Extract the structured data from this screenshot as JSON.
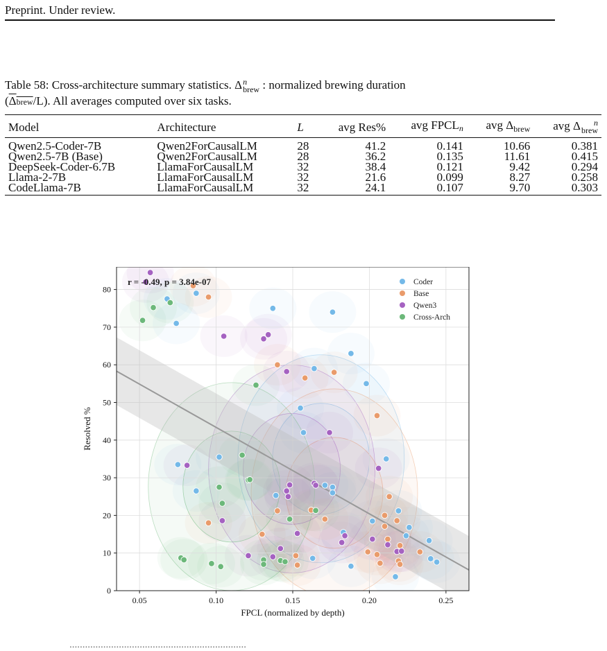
{
  "header": {
    "text": "Preprint. Under review."
  },
  "caption": {
    "lead": "Table 58: Cross-architecture summary statistics.",
    "delta": "Δ",
    "delta_sup": "n",
    "delta_sub": "brew",
    "colon_text": ": normalized brewing duration",
    "ratio_open": "(",
    "ratio_over": "Δ",
    "ratio_sub": "brew",
    "ratio_tail": "/L). All averages computed over six tasks."
  },
  "table": {
    "headers": {
      "model": "Model",
      "arch": "Architecture",
      "L": "L",
      "res": "avg Res%",
      "fpcl": "avg FPCL",
      "fpcl_sub": "n",
      "brew": "avg Δ",
      "brew_sub": "brew",
      "brewn": "avg Δ",
      "brewn_sup": "n",
      "brewn_sub": "brew"
    },
    "rows": [
      {
        "model": "Qwen2.5-Coder-7B",
        "arch": "Qwen2ForCausalLM",
        "L": "28",
        "res": "41.2",
        "fpcl": "0.141",
        "brew": "10.66",
        "brewn": "0.381"
      },
      {
        "model": "Qwen2.5-7B (Base)",
        "arch": "Qwen2ForCausalLM",
        "L": "28",
        "res": "36.2",
        "fpcl": "0.135",
        "brew": "11.61",
        "brewn": "0.415"
      },
      {
        "model": "DeepSeek-Coder-6.7B",
        "arch": "LlamaForCausalLM",
        "L": "32",
        "res": "38.4",
        "fpcl": "0.121",
        "brew": "9.42",
        "brewn": "0.294"
      },
      {
        "model": "Llama-2-7B",
        "arch": "LlamaForCausalLM",
        "L": "32",
        "res": "21.6",
        "fpcl": "0.099",
        "brew": "8.27",
        "brewn": "0.258"
      },
      {
        "model": "CodeLlama-7B",
        "arch": "LlamaForCausalLM",
        "L": "32",
        "res": "24.1",
        "fpcl": "0.107",
        "brew": "9.70",
        "brewn": "0.303"
      }
    ]
  },
  "chart_data": {
    "type": "scatter",
    "xlabel": "FPCL (normalized by depth)",
    "ylabel": "Resolved %",
    "xlim": [
      0.035,
      0.265
    ],
    "ylim": [
      0,
      86
    ],
    "xticks": [
      "0.05",
      "0.10",
      "0.15",
      "0.20",
      "0.25"
    ],
    "yticks": [
      "0",
      "10",
      "20",
      "30",
      "40",
      "50",
      "60",
      "70",
      "80"
    ],
    "grid": true,
    "legend_position": "top-right",
    "annotation": "r = -0.49,  p = 3.84e-07",
    "trend": {
      "x": [
        0.035,
        0.265
      ],
      "y": [
        58.3,
        5.5
      ]
    },
    "series": [
      {
        "name": "Coder",
        "color": "#74b9e8",
        "points": [
          [
            0.068,
            77.5
          ],
          [
            0.074,
            71
          ],
          [
            0.087,
            79
          ],
          [
            0.075,
            33.5
          ],
          [
            0.087,
            26.5
          ],
          [
            0.102,
            35.5
          ],
          [
            0.137,
            75
          ],
          [
            0.176,
            74
          ],
          [
            0.188,
            63
          ],
          [
            0.198,
            55
          ],
          [
            0.164,
            59
          ],
          [
            0.155,
            48.5
          ],
          [
            0.157,
            42
          ],
          [
            0.211,
            35
          ],
          [
            0.139,
            25.3
          ],
          [
            0.171,
            28
          ],
          [
            0.176,
            27.5
          ],
          [
            0.176,
            26
          ],
          [
            0.183,
            15.5
          ],
          [
            0.188,
            6.5
          ],
          [
            0.163,
            8.6
          ],
          [
            0.202,
            18.5
          ],
          [
            0.219,
            21.2
          ],
          [
            0.226,
            16.8
          ],
          [
            0.224,
            14.6
          ],
          [
            0.239,
            13.3
          ],
          [
            0.24,
            8.5
          ],
          [
            0.244,
            7.6
          ],
          [
            0.217,
            3.7
          ]
        ]
      },
      {
        "name": "Base",
        "color": "#e99b6b",
        "points": [
          [
            0.085,
            81
          ],
          [
            0.095,
            78
          ],
          [
            0.14,
            60
          ],
          [
            0.158,
            56.5
          ],
          [
            0.177,
            58
          ],
          [
            0.205,
            46.5
          ],
          [
            0.095,
            18
          ],
          [
            0.13,
            15
          ],
          [
            0.14,
            21.2
          ],
          [
            0.162,
            21.4
          ],
          [
            0.171,
            19
          ],
          [
            0.152,
            9.3
          ],
          [
            0.153,
            6.8
          ],
          [
            0.199,
            10.3
          ],
          [
            0.205,
            9.6
          ],
          [
            0.207,
            7.3
          ],
          [
            0.21,
            20
          ],
          [
            0.212,
            13.7
          ],
          [
            0.213,
            25
          ],
          [
            0.218,
            18.6
          ],
          [
            0.22,
            12
          ],
          [
            0.219,
            7.9
          ],
          [
            0.22,
            7
          ],
          [
            0.233,
            10.3
          ],
          [
            0.21,
            17.1
          ]
        ]
      },
      {
        "name": "Qwen3",
        "color": "#a562c1",
        "points": [
          [
            0.054,
            82
          ],
          [
            0.057,
            84.5
          ],
          [
            0.105,
            67.6
          ],
          [
            0.131,
            66.9
          ],
          [
            0.134,
            68
          ],
          [
            0.146,
            58.2
          ],
          [
            0.174,
            42
          ],
          [
            0.206,
            32.5
          ],
          [
            0.081,
            33.3
          ],
          [
            0.104,
            18.6
          ],
          [
            0.121,
            9.3
          ],
          [
            0.137,
            9
          ],
          [
            0.142,
            11.2
          ],
          [
            0.146,
            26.5
          ],
          [
            0.148,
            28.1
          ],
          [
            0.147,
            25
          ],
          [
            0.153,
            15.2
          ],
          [
            0.164,
            28.5
          ],
          [
            0.165,
            28
          ],
          [
            0.182,
            12.8
          ],
          [
            0.184,
            14.6
          ],
          [
            0.202,
            13.7
          ],
          [
            0.212,
            12.2
          ],
          [
            0.218,
            10.4
          ],
          [
            0.221,
            10.5
          ]
        ]
      },
      {
        "name": "Cross-Arch",
        "color": "#6cb87a",
        "points": [
          [
            0.052,
            71.8
          ],
          [
            0.059,
            75.2
          ],
          [
            0.07,
            76.5
          ],
          [
            0.126,
            54.6
          ],
          [
            0.117,
            36
          ],
          [
            0.102,
            27.5
          ],
          [
            0.104,
            23.2
          ],
          [
            0.121,
            29.4
          ],
          [
            0.122,
            29.5
          ],
          [
            0.148,
            19
          ],
          [
            0.165,
            21.3
          ],
          [
            0.077,
            8.7
          ],
          [
            0.079,
            8.2
          ],
          [
            0.097,
            7.2
          ],
          [
            0.103,
            6.4
          ],
          [
            0.131,
            8.2
          ],
          [
            0.131,
            7
          ],
          [
            0.142,
            8
          ],
          [
            0.145,
            7.7
          ]
        ]
      }
    ]
  },
  "footer": {
    "cut_text": "...................................................................."
  }
}
